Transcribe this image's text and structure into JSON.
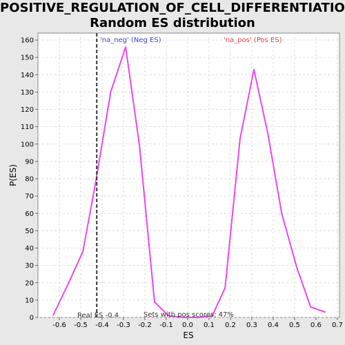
{
  "colors": {
    "background": "#e8e8e8",
    "plot_background": "#ffffff",
    "grid": "#dddddd",
    "series": "#ee44ee",
    "marker_line": "#333333",
    "neg_label": "#4444cc",
    "pos_label": "#dd4444",
    "note_text": "#333333"
  },
  "chart_data": {
    "type": "line",
    "title_line1": "POSITIVE_REGULATION_OF_CELL_DIFFERENTIATION:",
    "title_line2": "Random ES distribution",
    "xlabel": "ES",
    "ylabel": "P(ES)",
    "xlim": [
      -0.7,
      0.71
    ],
    "ylim": [
      0,
      164
    ],
    "x_ticks": [
      -0.6,
      -0.5,
      -0.4,
      -0.3,
      -0.2,
      -0.1,
      0.0,
      0.1,
      0.2,
      0.3,
      0.4,
      0.5,
      0.6,
      0.7
    ],
    "x_tick_labels": [
      "-0.6",
      "-0.5",
      "-0.4",
      "-0.3",
      "-0.2",
      "-0.1",
      "0.0",
      "0.1",
      "0.2",
      "0.3",
      "0.4",
      "0.5",
      "0.6",
      "0.7"
    ],
    "y_ticks": [
      0,
      10,
      20,
      30,
      40,
      50,
      60,
      70,
      80,
      90,
      100,
      110,
      120,
      130,
      140,
      150,
      160
    ],
    "y_tick_labels": [
      "0",
      "10",
      "20",
      "30",
      "40",
      "50",
      "60",
      "70",
      "80",
      "90",
      "100",
      "110",
      "120",
      "130",
      "140",
      "150",
      "160"
    ],
    "grid": true,
    "series": [
      {
        "x": [
          -0.63,
          -0.56,
          -0.49,
          -0.43,
          -0.36,
          -0.29,
          -0.225,
          -0.155,
          -0.09,
          -0.02,
          0.05,
          0.115,
          0.175,
          0.245,
          0.31,
          0.375,
          0.44,
          0.51,
          0.575,
          0.645
        ],
        "y": [
          1,
          19,
          38,
          78,
          130,
          156,
          99,
          9,
          1,
          0,
          0,
          1,
          17,
          103,
          143,
          106,
          60,
          29,
          6,
          3
        ]
      }
    ],
    "real_es": -0.425,
    "annotations": {
      "neg_label": "'na_neg' (Neg ES)",
      "pos_label": "'na_pos' (Pos ES)",
      "real_es_label": "Real ES -0.4",
      "pos_scores_label": "Sets with pos scores: 47%"
    }
  }
}
